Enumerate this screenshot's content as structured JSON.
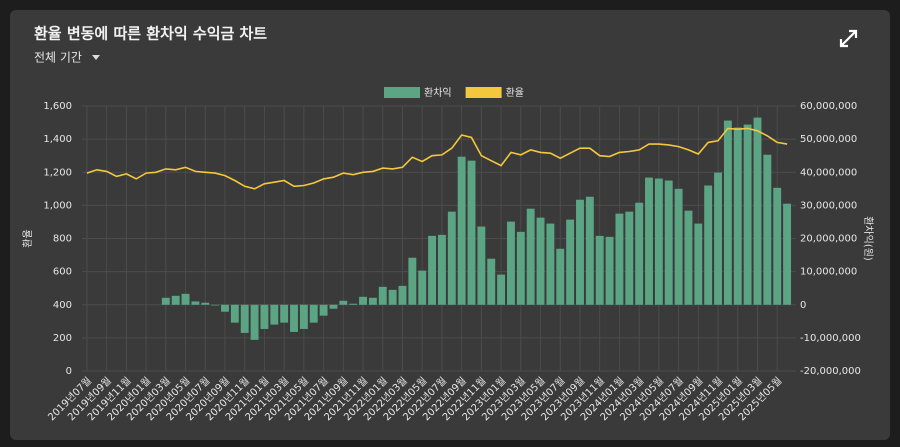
{
  "header": {
    "title": "환율 변동에 따른 환차익 수익금 차트",
    "period": "전체 기간"
  },
  "chart_data": {
    "type": "combo",
    "categories": [
      "2019년07월",
      null,
      "2019년09월",
      null,
      "2019년11월",
      null,
      "2020년01월",
      null,
      "2020년03월",
      null,
      "2020년05월",
      null,
      "2020년07월",
      null,
      "2020년09월",
      null,
      "2020년11월",
      null,
      "2021년01월",
      null,
      "2021년03월",
      null,
      "2021년05월",
      null,
      "2021년07월",
      null,
      "2021년09월",
      null,
      "2021년11월",
      null,
      "2022년01월",
      null,
      "2022년03월",
      null,
      "2022년05월",
      null,
      "2022년07월",
      null,
      "2022년09월",
      null,
      "2022년11월",
      null,
      "2023년01월",
      null,
      "2023년03월",
      null,
      "2023년05월",
      null,
      "2023년07월",
      null,
      "2023년09월",
      null,
      "2023년11월",
      null,
      "2024년01월",
      null,
      "2024년03월",
      null,
      "2024년05월",
      null,
      "2024년07월",
      null,
      "2024년09월",
      null,
      "2024년11월",
      null,
      "2025년01월",
      null,
      "2025년03월",
      null,
      "2025년05월",
      null
    ],
    "series": [
      {
        "name": "환차익",
        "type": "bar",
        "axis": "y2",
        "color": "#5ba585",
        "values": [
          0,
          0,
          0,
          0,
          0,
          0,
          0,
          0,
          2100000,
          2700000,
          3300000,
          1000000,
          600000,
          -200000,
          -2100000,
          -5400000,
          -8500000,
          -10600000,
          -7300000,
          -6000000,
          -5400000,
          -8200000,
          -7300000,
          -5400000,
          -3300000,
          -1200000,
          1200000,
          300000,
          2400000,
          2100000,
          5400000,
          4500000,
          5700000,
          14200000,
          10300000,
          20800000,
          21100000,
          28100000,
          44700000,
          43500000,
          23600000,
          13900000,
          9100000,
          25100000,
          22000000,
          29000000,
          26300000,
          24500000,
          16900000,
          25700000,
          31700000,
          32600000,
          20800000,
          20500000,
          27500000,
          28100000,
          30800000,
          38400000,
          38100000,
          37500000,
          35000000,
          28400000,
          24500000,
          36000000,
          39900000,
          55600000,
          53500000,
          54400000,
          56500000,
          45300000,
          35300000,
          30500000
        ]
      },
      {
        "name": "환율",
        "type": "line",
        "color": "#f3c83c",
        "values": [
          1195,
          1215,
          1205,
          1175,
          1190,
          1160,
          1195,
          1200,
          1220,
          1215,
          1230,
          1205,
          1200,
          1195,
          1180,
          1150,
          1115,
          1100,
          1130,
          1140,
          1150,
          1115,
          1120,
          1135,
          1160,
          1170,
          1195,
          1185,
          1200,
          1205,
          1225,
          1220,
          1230,
          1290,
          1265,
          1300,
          1305,
          1345,
          1425,
          1410,
          1300,
          1270,
          1240,
          1320,
          1305,
          1335,
          1320,
          1315,
          1285,
          1315,
          1345,
          1345,
          1300,
          1295,
          1320,
          1325,
          1335,
          1370,
          1370,
          1365,
          1355,
          1335,
          1310,
          1380,
          1390,
          1465,
          1460,
          1465,
          1450,
          1420,
          1380,
          1370
        ]
      }
    ],
    "ylabel": "환율",
    "y2label": "환차익(원)",
    "ylim": [
      0,
      1600
    ],
    "yticks": [
      0,
      200,
      400,
      600,
      800,
      {
        "value": 1000,
        "label": "1,000"
      },
      {
        "value": 1200,
        "label": "1,200"
      },
      {
        "value": 1400,
        "label": "1,400"
      },
      {
        "value": 1600,
        "label": "1,600"
      }
    ],
    "y2lim": [
      -20000000,
      60000000
    ],
    "y2ticks": [
      {
        "value": -20000000,
        "label": "-20,000,000"
      },
      {
        "value": -10000000,
        "label": "-10,000,000"
      },
      0,
      {
        "value": 10000000,
        "label": "10,000,000"
      },
      {
        "value": 20000000,
        "label": "20,000,000"
      },
      {
        "value": 30000000,
        "label": "30,000,000"
      },
      {
        "value": 40000000,
        "label": "40,000,000"
      },
      {
        "value": 50000000,
        "label": "50,000,000"
      },
      {
        "value": 60000000,
        "label": "60,000,000"
      }
    ],
    "grid": true,
    "legend": "top"
  }
}
